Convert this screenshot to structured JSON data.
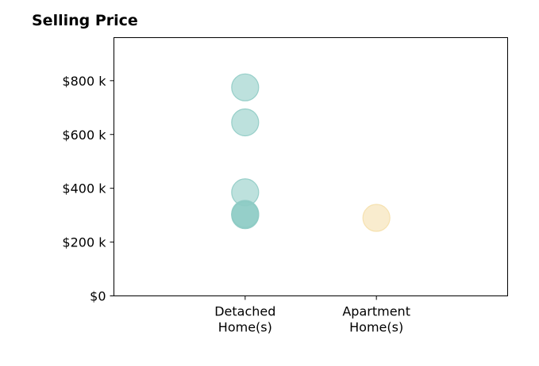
{
  "chart_data": {
    "type": "scatter",
    "title": "Selling Price",
    "xlabel": "",
    "ylabel": "",
    "categories": [
      {
        "line1": "Detached",
        "line2": "Home(s)"
      },
      {
        "line1": "Apartment",
        "line2": "Home(s)"
      }
    ],
    "xlim": [
      -1,
      2
    ],
    "ylim": [
      0,
      960000
    ],
    "y_ticks": [
      {
        "value": 0,
        "label": "$0"
      },
      {
        "value": 200000,
        "label": "$200 k"
      },
      {
        "value": 400000,
        "label": "$400 k"
      },
      {
        "value": 600000,
        "label": "$600 k"
      },
      {
        "value": 800000,
        "label": "$800 k"
      }
    ],
    "grid": false,
    "legend": "none",
    "points": [
      {
        "category_index": 0,
        "y": 775000,
        "color": "#8ecbc4"
      },
      {
        "category_index": 0,
        "y": 645000,
        "color": "#8ecbc4"
      },
      {
        "category_index": 0,
        "y": 385000,
        "color": "#8ecbc4"
      },
      {
        "category_index": 0,
        "y": 305000,
        "color": "#8ecbc4"
      },
      {
        "category_index": 0,
        "y": 300000,
        "color": "#8ecbc4"
      },
      {
        "category_index": 0,
        "y": 302000,
        "color": "#8ecbc4"
      },
      {
        "category_index": 1,
        "y": 290000,
        "color": "#f5dfaa"
      }
    ]
  }
}
